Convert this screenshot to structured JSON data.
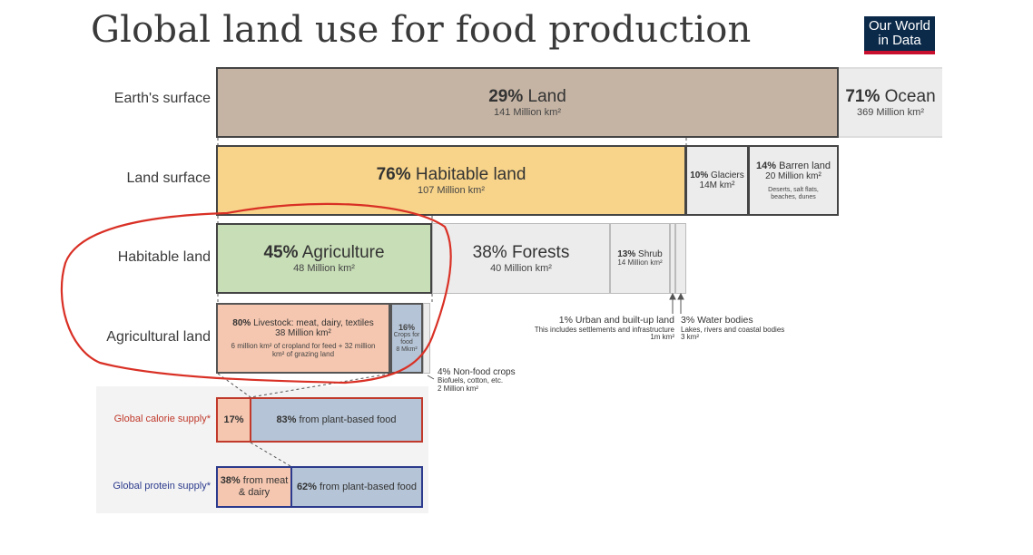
{
  "header": {
    "title": "Global land use for food production",
    "logo": "Our World in Data"
  },
  "rows": {
    "earth": "Earth's surface",
    "land": "Land surface",
    "habitable": "Habitable land",
    "agricultural": "Agricultural land",
    "calorie": "Global calorie supply*",
    "protein": "Global protein supply*"
  },
  "boxes": {
    "land": {
      "pct": "29%",
      "label": "Land",
      "value": "141 Million km²"
    },
    "ocean": {
      "pct": "71%",
      "label": "Ocean",
      "value": "369 Million km²"
    },
    "habitable": {
      "pct": "76%",
      "label": "Habitable land",
      "value": "107 Million km²"
    },
    "glaciers": {
      "pct": "10%",
      "label": "Glaciers",
      "value": "14M km²"
    },
    "barren": {
      "pct": "14%",
      "label": "Barren land",
      "value": "20 Million km²",
      "note": "Deserts, salt flats, beaches, dunes"
    },
    "agriculture": {
      "pct": "45%",
      "label": "Agriculture",
      "value": "48 Million km²"
    },
    "forests": {
      "pct": "38%",
      "label": "Forests",
      "value": "40 Million km²"
    },
    "shrub": {
      "pct": "13%",
      "label": "Shrub",
      "value": "14 Million km²"
    },
    "livestock": {
      "pct": "80%",
      "label": "Livestock: meat, dairy, textiles",
      "value": "38 Million km²",
      "note": "6 million km² of cropland for feed + 32 million km² of grazing land"
    },
    "crops": {
      "pct": "16%",
      "label": "Crops for food",
      "value": "8 Mkm²"
    },
    "calorie_meat": {
      "pct": "17%"
    },
    "calorie_plant": {
      "pct": "83%",
      "label": "from plant-based food"
    },
    "protein_meat": {
      "pct": "38%",
      "label": "from meat & dairy"
    },
    "protein_plant": {
      "pct": "62%",
      "label": "from plant-based food"
    }
  },
  "annotations": {
    "urban": {
      "title": "1% Urban and built-up land",
      "line1": "This includes settlements and infrastructure",
      "line2": "1m km²"
    },
    "water": {
      "title": "3% Water bodies",
      "line1": "Lakes, rivers and coastal bodies",
      "line2": "3 km²"
    },
    "nonfood": {
      "title": "4% Non-food crops",
      "line1": "Biofuels, cotton, etc.",
      "line2": "2 Million km²"
    }
  },
  "colors": {
    "land": "#c5b4a4",
    "ocean": "#ececec",
    "habitable": "#f8d48a",
    "agriculture": "#c8deb7",
    "forests": "#ececec",
    "livestock": "#f5c7b0",
    "crops": "#b5c4d6",
    "calorie_border": "#c0392b",
    "protein_border": "#2b3a8c",
    "highlight": "#d93025"
  }
}
